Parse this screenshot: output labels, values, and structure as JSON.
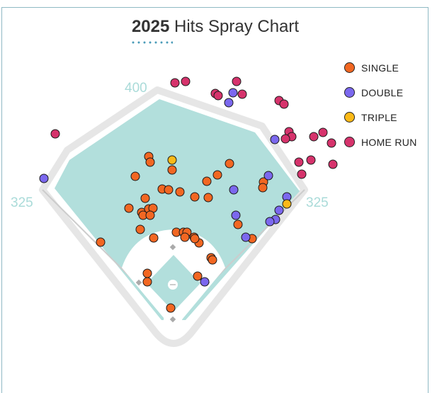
{
  "title": {
    "year": "2025",
    "text": "Hits Spray Chart"
  },
  "field_labels": {
    "center": "400",
    "left": "325",
    "right": "325"
  },
  "colors": {
    "single": "#f26722",
    "double": "#7b68ee",
    "triple": "#fbb917",
    "home_run": "#d6336c",
    "grass": "#b2dfdc",
    "accent": "#4a9bb8"
  },
  "legend": [
    {
      "key": "single",
      "label": "SINGLE",
      "color": "#f26722"
    },
    {
      "key": "double",
      "label": "DOUBLE",
      "color": "#7b68ee"
    },
    {
      "key": "triple",
      "label": "TRIPLE",
      "color": "#fbb917"
    },
    {
      "key": "home_run",
      "label": "HOME RUN",
      "color": "#d6336c"
    }
  ],
  "chart_data": {
    "type": "scatter",
    "title": "2025 Hits Spray Chart",
    "series": [
      {
        "name": "SINGLE",
        "key": "single",
        "points": [
          [
            210,
            221
          ],
          [
            212,
            229
          ],
          [
            191,
            249
          ],
          [
            243,
            240
          ],
          [
            324,
            231
          ],
          [
            307,
            247
          ],
          [
            292,
            256
          ],
          [
            229,
            267
          ],
          [
            238,
            268
          ],
          [
            254,
            271
          ],
          [
            205,
            280
          ],
          [
            275,
            278
          ],
          [
            294,
            279
          ],
          [
            182,
            294
          ],
          [
            200,
            300
          ],
          [
            210,
            295
          ],
          [
            216,
            294
          ],
          [
            202,
            304
          ],
          [
            212,
            304
          ],
          [
            198,
            324
          ],
          [
            217,
            336
          ],
          [
            142,
            342
          ],
          [
            249,
            328
          ],
          [
            259,
            328
          ],
          [
            264,
            328
          ],
          [
            261,
            335
          ],
          [
            274,
            335
          ],
          [
            281,
            343
          ],
          [
            275,
            337
          ],
          [
            336,
            317
          ],
          [
            356,
            337
          ],
          [
            372,
            257
          ],
          [
            371,
            265
          ],
          [
            298,
            364
          ],
          [
            300,
            367
          ],
          [
            208,
            386
          ],
          [
            279,
            390
          ],
          [
            208,
            398
          ],
          [
            241,
            435
          ]
        ]
      },
      {
        "name": "DOUBLE",
        "key": "double",
        "points": [
          [
            62,
            252
          ],
          [
            329,
            131
          ],
          [
            323,
            145
          ],
          [
            388,
            197
          ],
          [
            379,
            248
          ],
          [
            330,
            268
          ],
          [
            405,
            278
          ],
          [
            394,
            297
          ],
          [
            333,
            304
          ],
          [
            389,
            310
          ],
          [
            381,
            313
          ],
          [
            347,
            335
          ],
          [
            289,
            398
          ]
        ]
      },
      {
        "name": "TRIPLE",
        "key": "triple",
        "points": [
          [
            243,
            226
          ],
          [
            405,
            288
          ]
        ]
      },
      {
        "name": "HOME RUN",
        "key": "home_run",
        "points": [
          [
            247,
            117
          ],
          [
            262,
            115
          ],
          [
            334,
            115
          ],
          [
            304,
            132
          ],
          [
            308,
            135
          ],
          [
            342,
            133
          ],
          [
            394,
            142
          ],
          [
            401,
            147
          ],
          [
            78,
            189
          ],
          [
            408,
            186
          ],
          [
            412,
            193
          ],
          [
            403,
            196
          ],
          [
            443,
            193
          ],
          [
            456,
            187
          ],
          [
            468,
            202
          ],
          [
            422,
            229
          ],
          [
            439,
            226
          ],
          [
            470,
            232
          ],
          [
            426,
            246
          ]
        ]
      }
    ]
  }
}
